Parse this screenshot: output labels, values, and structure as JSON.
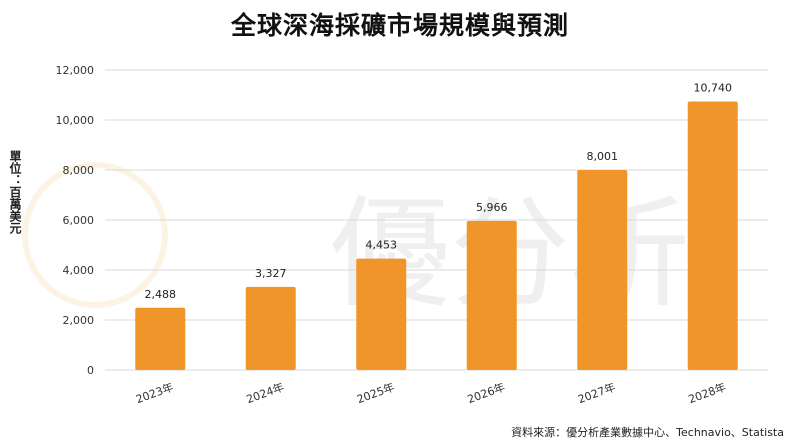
{
  "chart_data": {
    "type": "bar",
    "title": "全球深海採礦市場規模與預測",
    "ylabel": "單位：百萬美元",
    "categories": [
      "2023年",
      "2024年",
      "2025年",
      "2026年",
      "2027年",
      "2028年"
    ],
    "values": [
      2488,
      3327,
      4453,
      5966,
      8001,
      10740
    ],
    "value_labels": [
      "2,488",
      "3,327",
      "4,453",
      "5,966",
      "8,001",
      "10,740"
    ],
    "ylim": [
      0,
      12000
    ],
    "yticks": [
      0,
      2000,
      4000,
      6000,
      8000,
      10000,
      12000
    ],
    "ytick_labels": [
      "0",
      "2,000",
      "4,000",
      "6,000",
      "8,000",
      "10,000",
      "12,000"
    ],
    "grid": true,
    "bar_color": "#F0952A",
    "gridline_color": "#D9D9D9"
  },
  "source": "資料來源：優分析產業數據中心、Technavio、Statista",
  "watermark": "優分析"
}
